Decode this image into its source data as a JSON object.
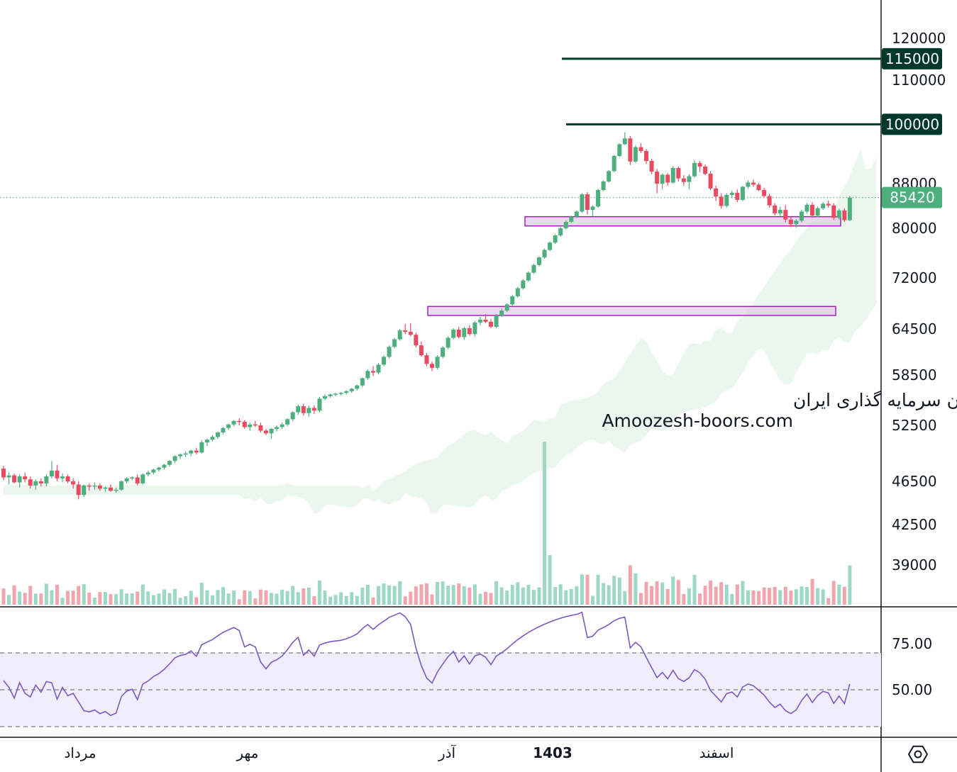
{
  "chart_data": {
    "type": "candlestick",
    "price_axis": {
      "ticks": [
        120000,
        110000,
        88000,
        80000,
        72000,
        64500,
        58500,
        52500,
        46500,
        42500,
        39000
      ]
    },
    "levels": [
      {
        "label": "115000",
        "value": 115000,
        "color": "#003829"
      },
      {
        "label": "100000",
        "value": 100000,
        "color": "#003829"
      }
    ],
    "last_price": {
      "label": "85420",
      "value": 85420,
      "color": "#4caf7d"
    },
    "zones": [
      {
        "from": 80400,
        "to": 82000
      },
      {
        "from": 66400,
        "to": 67700
      }
    ],
    "candles_summary": "daily candles rising from ~47000 to peak ~98000 then consolidating 80000-88000",
    "candles": [
      [
        47800,
        48100,
        46600,
        46900
      ],
      [
        46900,
        47400,
        46200,
        47100
      ],
      [
        47100,
        47300,
        46300,
        46400
      ],
      [
        46400,
        47200,
        45900,
        47000
      ],
      [
        47000,
        47400,
        46400,
        46700
      ],
      [
        46700,
        47000,
        45800,
        46100
      ],
      [
        46100,
        46700,
        45700,
        46500
      ],
      [
        46500,
        46800,
        46000,
        46300
      ],
      [
        46300,
        47200,
        46000,
        47000
      ],
      [
        47000,
        48600,
        46800,
        47600
      ],
      [
        47600,
        48200,
        46500,
        46800
      ],
      [
        46800,
        47300,
        46400,
        47000
      ],
      [
        47000,
        47200,
        46300,
        46500
      ],
      [
        46500,
        46800,
        45800,
        46200
      ],
      [
        46200,
        46500,
        44800,
        45200
      ],
      [
        45200,
        46200,
        45000,
        46100
      ],
      [
        46100,
        46300,
        45600,
        46000
      ],
      [
        46000,
        46400,
        45700,
        46100
      ],
      [
        46100,
        46300,
        45600,
        45800
      ],
      [
        45800,
        46000,
        45500,
        45900
      ],
      [
        45900,
        46200,
        45500,
        45600
      ],
      [
        45600,
        45900,
        45400,
        45700
      ],
      [
        45700,
        46600,
        45600,
        46500
      ],
      [
        46500,
        46900,
        46300,
        46800
      ],
      [
        46800,
        47000,
        46600,
        46900
      ],
      [
        46900,
        47200,
        46100,
        46300
      ],
      [
        46300,
        47300,
        46200,
        47200
      ],
      [
        47200,
        47600,
        47000,
        47400
      ],
      [
        47400,
        47800,
        47200,
        47700
      ],
      [
        47700,
        48000,
        47500,
        47900
      ],
      [
        47900,
        48300,
        47700,
        48200
      ],
      [
        48200,
        48700,
        48000,
        48600
      ],
      [
        48600,
        49200,
        48400,
        49100
      ],
      [
        49100,
        49400,
        48800,
        49300
      ],
      [
        49300,
        49600,
        49000,
        49400
      ],
      [
        49400,
        49800,
        49100,
        49700
      ],
      [
        49700,
        50000,
        49300,
        49500
      ],
      [
        49500,
        50800,
        49400,
        50600
      ],
      [
        50600,
        51000,
        50200,
        50900
      ],
      [
        50900,
        51400,
        50700,
        51200
      ],
      [
        51200,
        51800,
        51000,
        51700
      ],
      [
        51700,
        52300,
        51500,
        52200
      ],
      [
        52200,
        52700,
        52000,
        52600
      ],
      [
        52600,
        53100,
        52400,
        53000
      ],
      [
        53000,
        53300,
        52500,
        52900
      ],
      [
        52900,
        53100,
        52100,
        52300
      ],
      [
        52300,
        52800,
        51900,
        52600
      ],
      [
        52600,
        53000,
        52300,
        52500
      ],
      [
        52500,
        52800,
        51700,
        51900
      ],
      [
        51900,
        52100,
        51400,
        51600
      ],
      [
        51600,
        52200,
        51000,
        52100
      ],
      [
        52100,
        52500,
        51800,
        52300
      ],
      [
        52300,
        52800,
        52100,
        52600
      ],
      [
        52600,
        53300,
        52400,
        53200
      ],
      [
        53200,
        54100,
        53000,
        54000
      ],
      [
        54000,
        54900,
        53700,
        54700
      ],
      [
        54700,
        55000,
        53600,
        53900
      ],
      [
        53900,
        54800,
        53500,
        54500
      ],
      [
        54500,
        54800,
        53800,
        54200
      ],
      [
        54200,
        55800,
        54000,
        55600
      ],
      [
        55600,
        56100,
        55400,
        55900
      ],
      [
        55900,
        56200,
        55700,
        56100
      ],
      [
        56100,
        56300,
        55900,
        56200
      ],
      [
        56200,
        56400,
        56000,
        56300
      ],
      [
        56300,
        56600,
        56100,
        56500
      ],
      [
        56500,
        56900,
        56300,
        56800
      ],
      [
        56800,
        57300,
        56600,
        57200
      ],
      [
        57200,
        58200,
        57000,
        58100
      ],
      [
        58100,
        59200,
        57900,
        59000
      ],
      [
        59000,
        59600,
        58400,
        58800
      ],
      [
        58800,
        60000,
        58600,
        59800
      ],
      [
        59800,
        61000,
        59600,
        60800
      ],
      [
        60800,
        62300,
        60600,
        62100
      ],
      [
        62100,
        63300,
        61900,
        63100
      ],
      [
        63100,
        64500,
        62900,
        64300
      ],
      [
        64300,
        65200,
        63800,
        64100
      ],
      [
        64100,
        65300,
        63500,
        63700
      ],
      [
        63700,
        64000,
        62000,
        62300
      ],
      [
        62300,
        62800,
        60800,
        61000
      ],
      [
        61000,
        61300,
        59600,
        59900
      ],
      [
        59900,
        60200,
        59000,
        59400
      ],
      [
        59400,
        61000,
        59200,
        60800
      ],
      [
        60800,
        62200,
        60600,
        62000
      ],
      [
        62000,
        63500,
        61800,
        63300
      ],
      [
        63300,
        64600,
        63100,
        64400
      ],
      [
        64400,
        64800,
        63200,
        63400
      ],
      [
        63400,
        64800,
        63000,
        64600
      ],
      [
        64600,
        65000,
        63600,
        63800
      ],
      [
        63800,
        65600,
        63500,
        65400
      ],
      [
        65400,
        66200,
        65000,
        65800
      ],
      [
        65800,
        66600,
        65300,
        65500
      ],
      [
        65500,
        65900,
        64600,
        64800
      ],
      [
        64800,
        66600,
        64600,
        66400
      ],
      [
        66400,
        67400,
        66200,
        67100
      ],
      [
        67100,
        68200,
        66900,
        68000
      ],
      [
        68000,
        69400,
        67800,
        69200
      ],
      [
        69200,
        70600,
        69000,
        70400
      ],
      [
        70400,
        71800,
        70200,
        71600
      ],
      [
        71600,
        73000,
        71400,
        72800
      ],
      [
        72800,
        74200,
        72600,
        74000
      ],
      [
        74000,
        75400,
        73800,
        75200
      ],
      [
        75200,
        76600,
        75000,
        76400
      ],
      [
        76400,
        77800,
        76200,
        77600
      ],
      [
        77600,
        79000,
        77400,
        78800
      ],
      [
        78800,
        80200,
        78600,
        80000
      ],
      [
        80000,
        81300,
        79800,
        81100
      ],
      [
        81100,
        82200,
        80900,
        82000
      ],
      [
        82000,
        83100,
        81800,
        82900
      ],
      [
        82900,
        86200,
        82700,
        86000
      ],
      [
        86000,
        86400,
        82400,
        83200
      ],
      [
        83200,
        84000,
        82100,
        83800
      ],
      [
        83800,
        87000,
        83600,
        86800
      ],
      [
        86800,
        88600,
        86600,
        88400
      ],
      [
        88400,
        90600,
        88200,
        90400
      ],
      [
        90400,
        93600,
        90200,
        93400
      ],
      [
        93400,
        96000,
        93200,
        95800
      ],
      [
        95800,
        98300,
        95600,
        97000
      ],
      [
        97000,
        97500,
        91600,
        92300
      ],
      [
        92300,
        95600,
        92000,
        95200
      ],
      [
        95200,
        96000,
        94000,
        94400
      ],
      [
        94400,
        94800,
        91800,
        92400
      ],
      [
        92400,
        92800,
        89800,
        90300
      ],
      [
        90300,
        90800,
        86200,
        88000
      ],
      [
        88000,
        89900,
        87000,
        89700
      ],
      [
        89700,
        90000,
        87600,
        88200
      ],
      [
        88200,
        91400,
        88000,
        91000
      ],
      [
        91000,
        91300,
        88400,
        89000
      ],
      [
        89000,
        89600,
        87600,
        88300
      ],
      [
        88300,
        89800,
        86900,
        89400
      ],
      [
        89400,
        92600,
        89100,
        92000
      ],
      [
        92000,
        92400,
        90200,
        91300
      ],
      [
        91300,
        91700,
        89600,
        89900
      ],
      [
        89900,
        90400,
        86800,
        87100
      ],
      [
        87100,
        87600,
        84800,
        85600
      ],
      [
        85600,
        86200,
        83400,
        83900
      ],
      [
        83900,
        86200,
        83600,
        85900
      ],
      [
        85900,
        86700,
        85300,
        86300
      ],
      [
        86300,
        86900,
        84600,
        85000
      ],
      [
        85000,
        87600,
        84800,
        87400
      ],
      [
        87400,
        88600,
        87100,
        88200
      ],
      [
        88200,
        88800,
        87400,
        87800
      ],
      [
        87800,
        88100,
        86600,
        86800
      ],
      [
        86800,
        87200,
        85400,
        85700
      ],
      [
        85700,
        86100,
        83600,
        84000
      ],
      [
        84000,
        84400,
        82200,
        82600
      ],
      [
        82600,
        83800,
        82000,
        83200
      ],
      [
        83200,
        84100,
        81000,
        81500
      ],
      [
        81500,
        82000,
        80200,
        80700
      ],
      [
        80700,
        81600,
        80100,
        81300
      ],
      [
        81300,
        83200,
        81000,
        82900
      ],
      [
        82900,
        84400,
        82600,
        84100
      ],
      [
        84100,
        84600,
        81800,
        82200
      ],
      [
        82200,
        83800,
        81900,
        83500
      ],
      [
        83500,
        84600,
        83200,
        84300
      ],
      [
        84300,
        84900,
        83600,
        84000
      ],
      [
        84000,
        84400,
        81400,
        81800
      ],
      [
        81800,
        83400,
        81500,
        83100
      ],
      [
        83100,
        83500,
        81100,
        81400
      ],
      [
        81400,
        85700,
        81200,
        85420
      ]
    ],
    "rsi": {
      "ticks": [
        75.0,
        50.0
      ],
      "upper": 70,
      "middle": 50,
      "lower": 30
    },
    "time_axis": [
      {
        "label": "مرداد",
        "bold": false
      },
      {
        "label": "مهر",
        "bold": false
      },
      {
        "label": "آذر",
        "bold": false
      },
      {
        "label": "1403",
        "bold": true
      },
      {
        "label": "اسفند",
        "bold": false
      }
    ],
    "watermark": {
      "line1": "انجمن خبرگان سرمایه گذاری ایران",
      "line2": "Amoozesh-boors.com"
    }
  }
}
